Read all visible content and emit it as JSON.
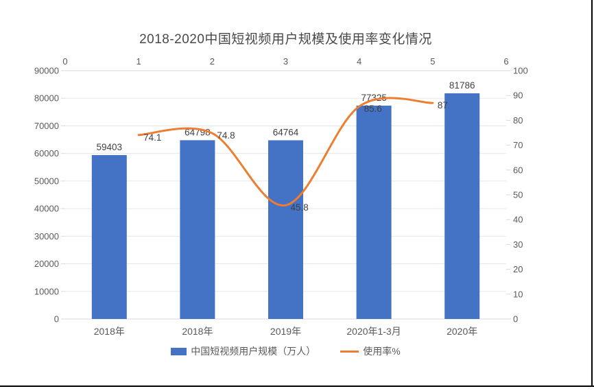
{
  "title": "2018-2020中国短视频用户规模及使用率变化情况",
  "chart_data": {
    "type": "bar+line combo",
    "title": "2018-2020中国短视频用户规模及使用率变化情况",
    "categories": [
      "2018年",
      "2018年",
      "2019年",
      "2020年1-3月",
      "2020年"
    ],
    "series": [
      {
        "name": "中国短视频用户规模（万人）",
        "type": "bar",
        "axis": "left",
        "values": [
          59403,
          64798,
          64764,
          77325,
          81786
        ],
        "data_labels": [
          "59403",
          "64798",
          "64764",
          "77325",
          "81786"
        ],
        "color": "#4472C4"
      },
      {
        "name": "使用率%",
        "type": "line",
        "axis": "right",
        "smooth": true,
        "x_top_axis": [
          1,
          2,
          3,
          4,
          5
        ],
        "values": [
          74.1,
          74.8,
          45.8,
          85.6,
          87
        ],
        "data_labels": [
          "74.1",
          "74.8",
          "45.8",
          "85.6",
          "87"
        ],
        "color": "#ED7D31"
      }
    ],
    "axes": {
      "left": {
        "min": 0,
        "max": 90000,
        "step": 10000,
        "tick_labels": [
          "0",
          "10000",
          "20000",
          "30000",
          "40000",
          "50000",
          "60000",
          "70000",
          "80000",
          "90000"
        ]
      },
      "right": {
        "min": 0,
        "max": 100,
        "step": 10,
        "tick_labels": [
          "0",
          "10",
          "20",
          "30",
          "40",
          "50",
          "60",
          "70",
          "80",
          "90",
          "100"
        ]
      },
      "top": {
        "min": 0,
        "max": 6,
        "step": 1,
        "tick_labels": [
          "0",
          "1",
          "2",
          "3",
          "4",
          "5",
          "6"
        ]
      }
    },
    "grid": true,
    "legend_position": "bottom"
  },
  "colors": {
    "bar": "#4472C4",
    "line": "#ED7D31",
    "grid": "#E7E7E7",
    "axis_line": "#D9D9D9",
    "tick_label": "#595959",
    "data_label": "#404040",
    "page_border": "#000000"
  }
}
